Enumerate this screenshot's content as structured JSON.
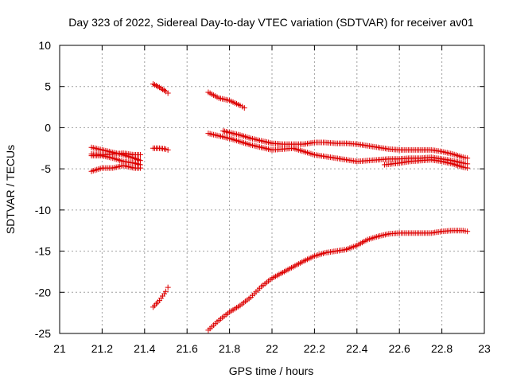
{
  "chart_data": {
    "type": "scatter",
    "title": "Day 323 of 2022, Sidereal Day-to-day VTEC variation (SDTVAR) for receiver av01",
    "xlabel": "GPS time / hours",
    "ylabel": "SDTVAR / TECUs",
    "xlim": [
      21,
      23
    ],
    "ylim": [
      -25,
      10
    ],
    "xticks": [
      21,
      21.2,
      21.4,
      21.6,
      21.8,
      22,
      22.2,
      22.4,
      22.6,
      22.8,
      23
    ],
    "xtick_labels": [
      "21",
      "21.2",
      "21.4",
      "21.6",
      "21.8",
      "22",
      "22.2",
      "22.4",
      "22.6",
      "22.8",
      "23"
    ],
    "yticks": [
      -25,
      -20,
      -15,
      -10,
      -5,
      0,
      5,
      10
    ],
    "ytick_labels": [
      "-25",
      "-20",
      "-15",
      "-10",
      "-5",
      "0",
      "5",
      "10"
    ],
    "grid": true,
    "marker": "+",
    "marker_color": "#dd0000",
    "series": [
      {
        "name": "seg1",
        "x": [
          21.15,
          21.2,
          21.25,
          21.3,
          21.35,
          21.38
        ],
        "y": [
          -2.4,
          -2.7,
          -3.0,
          -3.3,
          -3.7,
          -4.0
        ]
      },
      {
        "name": "seg2",
        "x": [
          21.15,
          21.2,
          21.25,
          21.3,
          21.35,
          21.38
        ],
        "y": [
          -3.2,
          -3.3,
          -3.2,
          -3.1,
          -3.3,
          -3.3
        ]
      },
      {
        "name": "seg3",
        "x": [
          21.15,
          21.2,
          21.25,
          21.3,
          21.35,
          21.38
        ],
        "y": [
          -3.4,
          -3.4,
          -3.7,
          -4.1,
          -4.3,
          -4.5
        ]
      },
      {
        "name": "seg4",
        "x": [
          21.15,
          21.2,
          21.25,
          21.3,
          21.35,
          21.38
        ],
        "y": [
          -5.3,
          -4.9,
          -4.9,
          -4.6,
          -4.9,
          -4.9
        ]
      },
      {
        "name": "seg5",
        "x": [
          21.44,
          21.47,
          21.5,
          21.51
        ],
        "y": [
          5.3,
          4.9,
          4.4,
          4.2
        ]
      },
      {
        "name": "seg6",
        "x": [
          21.44,
          21.47,
          21.5,
          21.51
        ],
        "y": [
          -2.5,
          -2.5,
          -2.6,
          -2.7
        ]
      },
      {
        "name": "seg7",
        "x": [
          21.44,
          21.47,
          21.5,
          21.51
        ],
        "y": [
          -21.8,
          -21.0,
          -19.9,
          -19.4
        ]
      },
      {
        "name": "seg8",
        "x": [
          21.7,
          21.75,
          21.8,
          21.85,
          21.87
        ],
        "y": [
          4.3,
          3.6,
          3.3,
          2.7,
          2.4
        ]
      },
      {
        "name": "seg9",
        "x": [
          21.7,
          21.75,
          21.8,
          21.85,
          21.9,
          21.95,
          22.0,
          22.05,
          22.1,
          22.15,
          22.2,
          22.25,
          22.3,
          22.35,
          22.4,
          22.45,
          22.5,
          22.55,
          22.6,
          22.65,
          22.7,
          22.75,
          22.8,
          22.85,
          22.9,
          22.92
        ],
        "y": [
          -0.7,
          -1.0,
          -1.3,
          -1.7,
          -2.1,
          -2.4,
          -2.7,
          -2.6,
          -2.5,
          -2.9,
          -3.3,
          -3.5,
          -3.7,
          -3.9,
          -4.1,
          -4.0,
          -3.9,
          -3.8,
          -3.8,
          -3.7,
          -3.7,
          -3.6,
          -3.8,
          -4.0,
          -4.3,
          -4.4
        ]
      },
      {
        "name": "seg10",
        "x": [
          21.77,
          21.8,
          21.85,
          21.9,
          21.95,
          22.0,
          22.05,
          22.1,
          22.15,
          22.2,
          22.25,
          22.3,
          22.35,
          22.4,
          22.45,
          22.5,
          22.55,
          22.6,
          22.65,
          22.7,
          22.75,
          22.8,
          22.85,
          22.9,
          22.92
        ],
        "y": [
          -0.4,
          -0.6,
          -0.9,
          -1.3,
          -1.6,
          -1.9,
          -2.0,
          -2.0,
          -2.0,
          -1.8,
          -1.8,
          -1.9,
          -1.9,
          -2.0,
          -2.2,
          -2.4,
          -2.6,
          -2.7,
          -2.7,
          -2.7,
          -2.7,
          -2.9,
          -3.2,
          -3.6,
          -3.7
        ]
      },
      {
        "name": "seg11",
        "x": [
          21.7,
          21.75,
          21.8,
          21.85,
          21.9,
          21.95,
          22.0,
          22.05,
          22.1,
          22.15,
          22.2,
          22.25,
          22.3,
          22.35,
          22.4,
          22.45,
          22.5,
          22.55,
          22.6,
          22.65,
          22.7,
          22.75,
          22.8,
          22.85,
          22.9,
          22.92
        ],
        "y": [
          -24.6,
          -23.4,
          -22.4,
          -21.6,
          -20.6,
          -19.3,
          -18.3,
          -17.6,
          -16.9,
          -16.2,
          -15.6,
          -15.2,
          -15.0,
          -14.8,
          -14.3,
          -13.6,
          -13.2,
          -12.9,
          -12.8,
          -12.8,
          -12.8,
          -12.8,
          -12.6,
          -12.5,
          -12.5,
          -12.6
        ]
      },
      {
        "name": "seg12",
        "x": [
          22.53,
          22.6,
          22.65,
          22.7,
          22.75,
          22.8,
          22.85,
          22.9,
          22.92
        ],
        "y": [
          -4.5,
          -4.3,
          -4.1,
          -4.0,
          -3.9,
          -4.1,
          -4.4,
          -4.8,
          -4.9
        ]
      }
    ]
  }
}
